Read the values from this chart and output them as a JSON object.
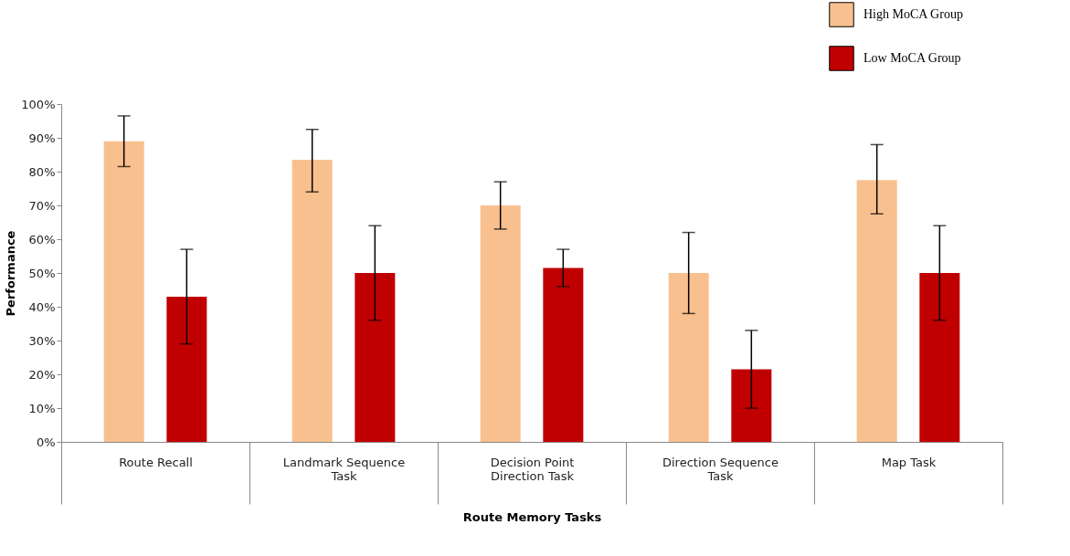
{
  "chart_data": {
    "type": "bar",
    "xlabel": "Route Memory Tasks",
    "ylabel": "Performance",
    "categories": [
      "Route Recall",
      "Landmark Sequence Task",
      "Decision Point Direction Task",
      "Direction Sequence Task",
      "Map Task"
    ],
    "series": [
      {
        "name": "High MoCA Group",
        "color": "#f9c08f",
        "values": [
          89,
          83.5,
          70,
          50,
          77.5
        ],
        "errors": [
          [
            81.5,
            96.5
          ],
          [
            74,
            92.5
          ],
          [
            63,
            77
          ],
          [
            38,
            62
          ],
          [
            67.5,
            88
          ]
        ]
      },
      {
        "name": "Low MoCA Group",
        "color": "#c00000",
        "values": [
          43,
          50,
          51.5,
          21.5,
          50
        ],
        "errors": [
          [
            29,
            57
          ],
          [
            36,
            64
          ],
          [
            46,
            57
          ],
          [
            10,
            33
          ],
          [
            36,
            64
          ]
        ]
      }
    ],
    "ylim": [
      0,
      100
    ],
    "yticks": [
      {
        "value": 0,
        "label": "0%"
      },
      {
        "value": 10,
        "label": "10%"
      },
      {
        "value": 20,
        "label": "20%"
      },
      {
        "value": 30,
        "label": "30%"
      },
      {
        "value": 40,
        "label": "40%"
      },
      {
        "value": 50,
        "label": "50%"
      },
      {
        "value": 60,
        "label": "60%"
      },
      {
        "value": 70,
        "label": "70%"
      },
      {
        "value": 80,
        "label": "80%"
      },
      {
        "value": 90,
        "label": "90%"
      },
      {
        "value": 100,
        "label": "100%"
      }
    ],
    "grid": false,
    "legend": "top right"
  }
}
